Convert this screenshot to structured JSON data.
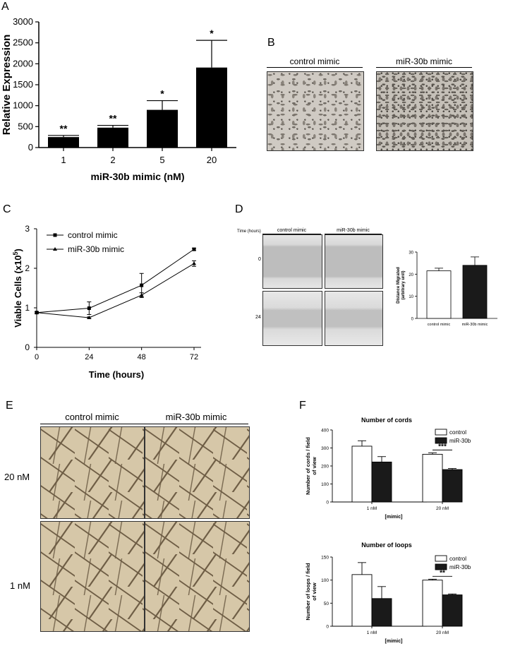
{
  "panels": {
    "A": "A",
    "B": "B",
    "C": "C",
    "D": "D",
    "E": "E",
    "F": "F"
  },
  "panelB": {
    "captions": [
      "control mimic",
      "miR-30b mimic"
    ]
  },
  "panelD": {
    "time_header": "Time (hours)",
    "captions": [
      "control mimic",
      "miR-30b mimic"
    ],
    "row_labels": [
      "0",
      "24"
    ]
  },
  "panelE": {
    "captions": [
      "control mimic",
      "miR-30b mimic"
    ],
    "row_labels": [
      "20 nM",
      "1 nM"
    ]
  },
  "chart_data": [
    {
      "id": "A",
      "type": "bar",
      "categories": [
        "1",
        "2",
        "5",
        "20"
      ],
      "values": [
        250,
        475,
        900,
        1910
      ],
      "errors": [
        40,
        55,
        220,
        650
      ],
      "annotations": [
        "**",
        "**",
        "*",
        "*"
      ],
      "xlabel": "miR-30b mimic (nM)",
      "ylabel": "Relative Expression",
      "ylim": [
        0,
        3000
      ],
      "yticks": [
        "0",
        "500",
        "1000",
        "1500",
        "2000",
        "2500",
        "3000"
      ],
      "color": "#000000"
    },
    {
      "id": "C",
      "type": "line",
      "x": [
        0,
        24,
        48,
        72
      ],
      "xticks": [
        "0",
        "24",
        "48",
        "72"
      ],
      "series": [
        {
          "name": "control mimic",
          "values": [
            0.88,
            0.99,
            1.57,
            2.48
          ],
          "errors": [
            0.02,
            0.16,
            0.3,
            0.03
          ]
        },
        {
          "name": "miR-30b mimic",
          "values": [
            0.88,
            0.75,
            1.32,
            2.12
          ],
          "errors": [
            0.02,
            0.02,
            0.06,
            0.07
          ]
        }
      ],
      "xlabel": "Time (hours)",
      "ylabel": "Viable Cells (x10",
      "ylabel_sup": "5",
      "ylabel_end": ")",
      "ylim": [
        0,
        3
      ],
      "yticks": [
        "0",
        "1",
        "2",
        "3"
      ],
      "legend": "top-left"
    },
    {
      "id": "D",
      "type": "bar",
      "categories": [
        "control mimic",
        "miR-30b mimic"
      ],
      "values": [
        21.5,
        24
      ],
      "errors": [
        1.2,
        3.8
      ],
      "ylabel": "Distance Migrated",
      "ylabel2": "(arbitrary unit)",
      "ylim": [
        0,
        30
      ],
      "yticks": [
        "0",
        "10",
        "20",
        "30"
      ],
      "fills": [
        "#ffffff",
        "#1a1a1a"
      ]
    },
    {
      "id": "F1",
      "type": "bar",
      "title": "Number of cords",
      "categories": [
        "1 nM",
        "20 nM"
      ],
      "xlabel": "[mimic]",
      "ylabel": "Number of cords / field",
      "ylabel2": "of view",
      "series": [
        {
          "name": "control",
          "values": [
            310,
            265
          ],
          "errors": [
            30,
            8
          ]
        },
        {
          "name": "miR-30b",
          "values": [
            222,
            180
          ],
          "errors": [
            30,
            6
          ]
        }
      ],
      "annotation": "***",
      "ylim": [
        0,
        400
      ],
      "yticks": [
        "0",
        "100",
        "200",
        "300",
        "400"
      ],
      "fills": [
        "#ffffff",
        "#1a1a1a"
      ],
      "legend": "top-right"
    },
    {
      "id": "F2",
      "type": "bar",
      "title": "Number of loops",
      "categories": [
        "1 nM",
        "20 nM"
      ],
      "xlabel": "[mimic]",
      "ylabel": "Number of loops / field",
      "ylabel2": "of view",
      "series": [
        {
          "name": "control",
          "values": [
            112,
            100
          ],
          "errors": [
            26,
            2
          ]
        },
        {
          "name": "miR-30b",
          "values": [
            60,
            68
          ],
          "errors": [
            26,
            2
          ]
        }
      ],
      "annotation": "**",
      "ylim": [
        0,
        150
      ],
      "yticks": [
        "0",
        "50",
        "100",
        "150"
      ],
      "fills": [
        "#ffffff",
        "#1a1a1a"
      ],
      "legend": "top-right"
    }
  ]
}
